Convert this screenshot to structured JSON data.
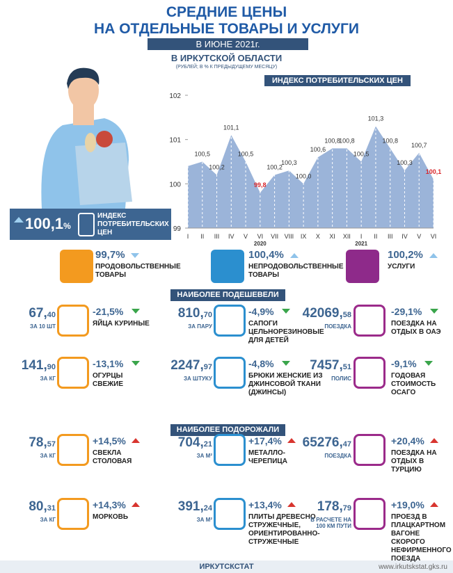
{
  "header": {
    "title": [
      "СРЕДНИЕ ЦЕНЫ",
      "НА ОТДЕЛЬНЫЕ ТОВАРЫ И УСЛУГИ"
    ],
    "period": "В ИЮНЕ 2021г.",
    "region": "В ИРКУТСКОЙ ОБЛАСТИ",
    "units": "(РУБЛЕЙ; В % К ПРЕДЫДУЩЕМУ МЕСЯЦУ)"
  },
  "chart_data": {
    "type": "area",
    "title": "ИНДЕКС ПОТРЕБИТЕЛЬСКИХ ЦЕН",
    "categories": [
      "I",
      "II",
      "III",
      "IV",
      "V",
      "VI",
      "VII",
      "VIII",
      "IX",
      "X",
      "XI",
      "XII",
      "I",
      "II",
      "III",
      "IV",
      "V",
      "VI"
    ],
    "values": [
      100.4,
      100.5,
      100.2,
      101.1,
      100.5,
      99.8,
      100.2,
      100.3,
      100.0,
      100.6,
      100.8,
      100.8,
      100.5,
      101.3,
      100.8,
      100.3,
      100.7,
      100.1
    ],
    "value_labels": [
      null,
      "100,5",
      "100,2",
      "101,1",
      "100,5",
      "99,8",
      "100,2",
      "100,3",
      "100,0",
      "100,6",
      "100,8",
      "100,8",
      "100,5",
      "101,3",
      "100,8",
      "100,3",
      "100,7",
      "100,1"
    ],
    "value_label_colors": [
      "#333333",
      "#333333",
      "#333333",
      "#333333",
      "#333333",
      "#d8262b",
      "#333333",
      "#333333",
      "#333333",
      "#333333",
      "#333333",
      "#333333",
      "#333333",
      "#333333",
      "#333333",
      "#333333",
      "#333333",
      "#d8262b"
    ],
    "color": "#9bb4d9",
    "ylim": [
      99,
      102
    ],
    "yticks": [
      99,
      100,
      101,
      102
    ],
    "grid": "x",
    "annotations": [
      "2020",
      "2021"
    ]
  },
  "cpi": {
    "value": "100,1",
    "unit": "%",
    "label": "ИНДЕКС ПОТРЕБИТЕЛЬСКИХ ЦЕН"
  },
  "groups": [
    {
      "value": "99,7%",
      "direction": "down",
      "label": "ПРОДОВОЛЬСТВЕННЫЕ ТОВАРЫ",
      "color": "#f39a1f"
    },
    {
      "value": "100,4%",
      "direction": "up",
      "label": "НЕПРОДОВОЛЬСТВЕННЫЕ ТОВАРЫ",
      "color": "#2b8fcf"
    },
    {
      "value": "100,2%",
      "direction": "up",
      "label": "УСЛУГИ",
      "color": "#8e2a8a"
    }
  ],
  "cheaper": {
    "title": "НАИБОЛЕЕ ПОДЕШЕВЕЛИ",
    "direction": "down",
    "items": [
      {
        "price": "67,",
        "cents": "40",
        "unit": "ЗА 10 ШТ",
        "change": "-21,5%",
        "name": "ЯЙЦА КУРИНЫЕ"
      },
      {
        "price": "810,",
        "cents": "70",
        "unit": "ЗА ПАРУ",
        "change": "-4,9%",
        "name": "САПОГИ ЦЕЛЬНОРЕЗИНОВЫЕ ДЛЯ ДЕТЕЙ"
      },
      {
        "price": "42069,",
        "cents": "58",
        "unit": "ПОЕЗДКА",
        "change": "-29,1%",
        "name": "ПОЕЗДКА НА ОТДЫХ В ОАЭ"
      },
      {
        "price": "141,",
        "cents": "90",
        "unit": "ЗА КГ",
        "change": "-13,1%",
        "name": "ОГУРЦЫ СВЕЖИЕ"
      },
      {
        "price": "2247,",
        "cents": "97",
        "unit": "ЗА ШТУКУ",
        "change": "-4,8%",
        "name": "БРЮКИ ЖЕНСКИЕ ИЗ ДЖИНСОВОЙ ТКАНИ (ДЖИНСЫ)"
      },
      {
        "price": "7457,",
        "cents": "51",
        "unit": "ПОЛИС",
        "change": "-9,1%",
        "name": "ГОДОВАЯ СТОИМОСТЬ ОСАГО"
      }
    ]
  },
  "pricier": {
    "title": "НАИБОЛЕЕ ПОДОРОЖАЛИ",
    "direction": "up",
    "items": [
      {
        "price": "78,",
        "cents": "57",
        "unit": "ЗА КГ",
        "change": "+14,5%",
        "name": "СВЕКЛА СТОЛОВАЯ"
      },
      {
        "price": "704,",
        "cents": "21",
        "unit": "ЗА М²",
        "change": "+17,4%",
        "name": "МЕТАЛЛО-ЧЕРЕПИЦА"
      },
      {
        "price": "65276,",
        "cents": "47",
        "unit": "ПОЕЗДКА",
        "change": "+20,4%",
        "name": "ПОЕЗДКА НА ОТДЫХ В ТУРЦИЮ"
      },
      {
        "price": "80,",
        "cents": "31",
        "unit": "ЗА КГ",
        "change": "+14,3%",
        "name": "МОРКОВЬ"
      },
      {
        "price": "391,",
        "cents": "24",
        "unit": "ЗА М²",
        "change": "+13,4%",
        "name": "ПЛИТЫ ДРЕВЕСНО СТРУЖЕЧНЫЕ, ОРИЕНТИРОВАННО-СТРУЖЕЧНЫЕ"
      },
      {
        "price": "178,",
        "cents": "79",
        "unit": "В РАСЧЕТЕ НА 100 КМ ПУТИ",
        "change": "+19,0%",
        "name": "ПРОЕЗД В ПЛАЦКАРТНОМ ВАГОНЕ СКОРОГО НЕФИРМЕННОГО ПОЕЗДА"
      }
    ]
  },
  "footer": {
    "org": "ИРКУТСКСТАТ",
    "url": "www.irkutskstat.gks.ru"
  }
}
